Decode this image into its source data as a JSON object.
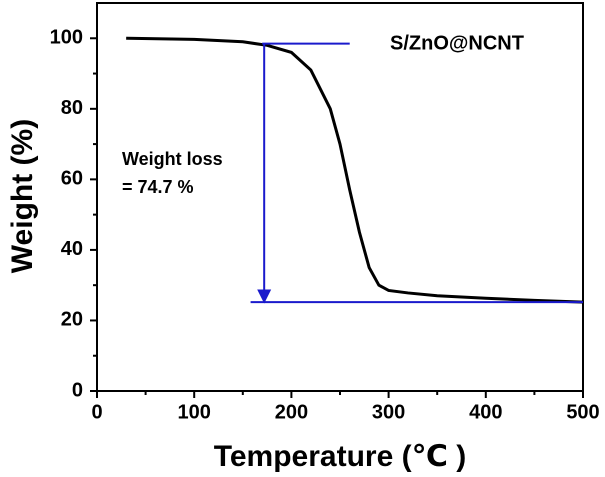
{
  "chart_data": {
    "type": "line",
    "x_label": "Temperature (℃ )",
    "y_label": "Weight (%)",
    "x": [
      30,
      100,
      150,
      175,
      200,
      220,
      240,
      250,
      260,
      270,
      280,
      290,
      300,
      320,
      350,
      400,
      450,
      500
    ],
    "series": [
      {
        "name": "S/ZnO@NCNT",
        "color": "#000000",
        "values": [
          100,
          99.7,
          99,
          98,
          96,
          91,
          80,
          70,
          57,
          45,
          35,
          30,
          28.5,
          27.8,
          27,
          26.3,
          25.7,
          25.2
        ]
      }
    ],
    "annotation": {
      "lines": [
        "Weight loss",
        "= 74.7 %"
      ],
      "color": "#1a1acc",
      "reference_lines": [
        {
          "y": 98.5,
          "x": [
            170,
            260
          ]
        },
        {
          "y": 25.2,
          "x": [
            158,
            500
          ]
        }
      ],
      "arrow": {
        "x": 172,
        "y": [
          98.5,
          25.2
        ]
      }
    },
    "xlim": [
      0,
      500
    ],
    "xticks": [
      0,
      100,
      200,
      300,
      400,
      500
    ],
    "xminorticks": [
      50,
      150,
      250,
      350,
      450
    ],
    "ylim": [
      0,
      110
    ],
    "yticks": [
      0,
      20,
      40,
      60,
      80,
      100
    ],
    "yminorticks": [
      10,
      30,
      50,
      70,
      90
    ]
  }
}
